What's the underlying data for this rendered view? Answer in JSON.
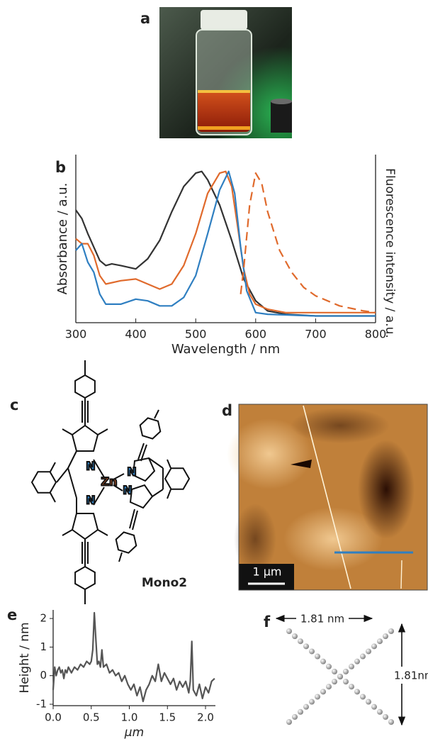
{
  "panel_labels": [
    "a",
    "b",
    "c",
    "d",
    "e",
    "f"
  ],
  "molecule": {
    "name": "Mono2",
    "metal": "Zn",
    "nitrogen": "N"
  },
  "afm": {
    "scale_bar": "1 µm"
  },
  "model": {
    "width": "1.81 nm",
    "height": "1.81nm"
  },
  "chart_data": [
    {
      "type": "line",
      "x_label": "Wavelength / nm",
      "y_label": "Absorbance / a.u.",
      "y2_label": "Fluorescence intensity / a.u.",
      "xlim": [
        300,
        800
      ],
      "xticks": [
        300,
        400,
        500,
        600,
        700,
        800
      ],
      "ylim": [
        0,
        1
      ],
      "series": [
        {
          "color": "#333333",
          "x": [
            300,
            310,
            320,
            330,
            340,
            350,
            360,
            375,
            400,
            420,
            440,
            460,
            480,
            500,
            510,
            520,
            540,
            560,
            580,
            600,
            620,
            650,
            700,
            800
          ],
          "values": [
            0.67,
            0.62,
            0.53,
            0.45,
            0.37,
            0.34,
            0.35,
            0.34,
            0.32,
            0.38,
            0.49,
            0.66,
            0.81,
            0.89,
            0.9,
            0.85,
            0.7,
            0.49,
            0.26,
            0.13,
            0.07,
            0.05,
            0.04,
            0.04
          ]
        },
        {
          "color": "#e06a2c",
          "x": [
            300,
            310,
            320,
            330,
            340,
            350,
            375,
            400,
            420,
            440,
            460,
            480,
            500,
            520,
            540,
            550,
            560,
            570,
            580,
            590,
            600,
            620,
            650,
            700,
            800
          ],
          "values": [
            0.5,
            0.47,
            0.47,
            0.4,
            0.28,
            0.23,
            0.25,
            0.26,
            0.23,
            0.2,
            0.23,
            0.34,
            0.53,
            0.77,
            0.89,
            0.9,
            0.81,
            0.57,
            0.32,
            0.17,
            0.11,
            0.08,
            0.06,
            0.06,
            0.06
          ]
        },
        {
          "color": "#2f7fc1",
          "x": [
            300,
            305,
            310,
            320,
            330,
            340,
            350,
            375,
            400,
            420,
            440,
            460,
            480,
            500,
            520,
            540,
            555,
            565,
            575,
            585,
            600,
            620,
            700,
            800
          ],
          "values": [
            0.43,
            0.45,
            0.47,
            0.36,
            0.3,
            0.17,
            0.11,
            0.11,
            0.14,
            0.13,
            0.1,
            0.1,
            0.15,
            0.28,
            0.53,
            0.79,
            0.9,
            0.77,
            0.45,
            0.19,
            0.06,
            0.05,
            0.04,
            0.04
          ]
        },
        {
          "color": "#e06a2c",
          "dash": true,
          "x": [
            575,
            580,
            590,
            600,
            610,
            620,
            640,
            660,
            680,
            700,
            740,
            780,
            800
          ],
          "values": [
            0.17,
            0.32,
            0.7,
            0.89,
            0.83,
            0.66,
            0.43,
            0.3,
            0.21,
            0.16,
            0.1,
            0.07,
            0.06
          ]
        }
      ]
    },
    {
      "type": "line",
      "x_label": "µm",
      "y_label": "Height / nm",
      "xlim": [
        0,
        2.13
      ],
      "xticks": [
        {
          "value": 0,
          "label": "0.0"
        },
        {
          "value": 0.5,
          "label": "0.5"
        },
        {
          "value": 1,
          "label": "1.0"
        },
        {
          "value": 1.5,
          "label": "1.5"
        },
        {
          "value": 2,
          "label": "2.0"
        }
      ],
      "ylim": [
        -1.05,
        2.3
      ],
      "yticks": [
        -1,
        0,
        1,
        2
      ],
      "series": [
        {
          "color": "#555555",
          "x": [
            0,
            0.02,
            0.04,
            0.06,
            0.08,
            0.1,
            0.12,
            0.14,
            0.16,
            0.18,
            0.2,
            0.24,
            0.28,
            0.32,
            0.36,
            0.4,
            0.44,
            0.48,
            0.5,
            0.52,
            0.54,
            0.56,
            0.58,
            0.6,
            0.62,
            0.64,
            0.66,
            0.7,
            0.74,
            0.78,
            0.82,
            0.86,
            0.9,
            0.94,
            0.98,
            1.02,
            1.06,
            1.1,
            1.14,
            1.18,
            1.22,
            1.26,
            1.3,
            1.34,
            1.38,
            1.42,
            1.46,
            1.5,
            1.54,
            1.58,
            1.62,
            1.66,
            1.7,
            1.74,
            1.78,
            1.8,
            1.82,
            1.84,
            1.88,
            1.92,
            1.96,
            2,
            2.04,
            2.08,
            2.12
          ],
          "values": [
            -0.5,
            0.3,
            0,
            0.2,
            0.3,
            0.1,
            0.2,
            -0.1,
            0.2,
            0.1,
            0.3,
            0.1,
            0.3,
            0.2,
            0.4,
            0.3,
            0.5,
            0.4,
            0.5,
            0.9,
            2.2,
            1.3,
            0.4,
            0.5,
            0.3,
            0.9,
            0.3,
            0.4,
            0.1,
            0.2,
            0,
            0.1,
            -0.2,
            0,
            -0.3,
            -0.5,
            -0.3,
            -0.7,
            -0.4,
            -0.9,
            -0.5,
            -0.3,
            0,
            -0.2,
            0.4,
            -0.2,
            0.1,
            -0.1,
            -0.3,
            -0.1,
            -0.5,
            -0.2,
            -0.4,
            -0.2,
            -0.6,
            -0.2,
            1.2,
            -0.5,
            -0.7,
            -0.3,
            -0.8,
            -0.4,
            -0.6,
            -0.2,
            -0.1
          ]
        }
      ]
    }
  ]
}
